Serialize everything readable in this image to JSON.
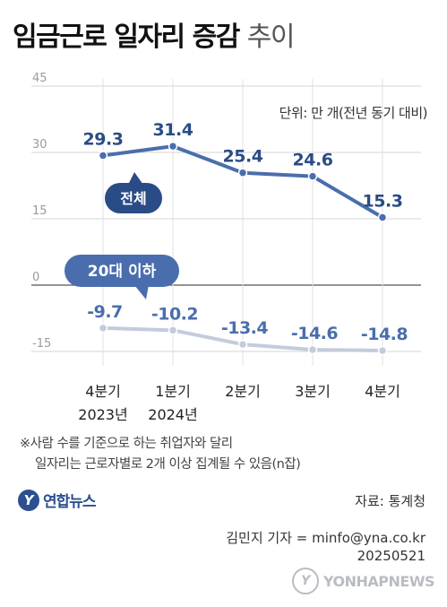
{
  "header": {
    "title_bold": "임금근로 일자리 증감",
    "title_light": "추이",
    "unit": "단위: 만 개(전년 동기 대비)"
  },
  "chart_data": {
    "type": "line",
    "categories": [
      {
        "line1": "4분기",
        "line2": "2023년"
      },
      {
        "line1": "1분기",
        "line2": "2024년"
      },
      {
        "line1": "2분기",
        "line2": ""
      },
      {
        "line1": "3분기",
        "line2": ""
      },
      {
        "line1": "4분기",
        "line2": ""
      }
    ],
    "yticks": [
      45,
      30,
      15,
      0,
      -15
    ],
    "ylim": [
      -20,
      45
    ],
    "series": [
      {
        "name": "전체",
        "values": [
          29.3,
          31.4,
          25.4,
          24.6,
          15.3
        ],
        "labels": [
          "29.3",
          "31.4",
          "25.4",
          "24.6",
          "15.3"
        ],
        "color": "#4a6ead"
      },
      {
        "name": "20대 이하",
        "values": [
          -9.7,
          -10.2,
          -13.4,
          -14.6,
          -14.8
        ],
        "labels": [
          "-9.7",
          "-10.2",
          "-13.4",
          "-14.6",
          "-14.8"
        ],
        "color": "#c3ccdc"
      }
    ],
    "grid": true
  },
  "footnote": {
    "line1": "※사람 수를 기준으로 하는 취업자와 달리",
    "line2": "일자리는 근로자별로 2개 이상 집계될 수 있음(n잡)"
  },
  "logo": {
    "mark": "Y",
    "text": "연합뉴스"
  },
  "source": "자료: 통계청",
  "credit": {
    "reporter": "김민지 기자 = minfo@yna.co.kr",
    "date": "20250521"
  },
  "watermark": {
    "mark": "Y",
    "text": "YONHAPNEWS"
  }
}
